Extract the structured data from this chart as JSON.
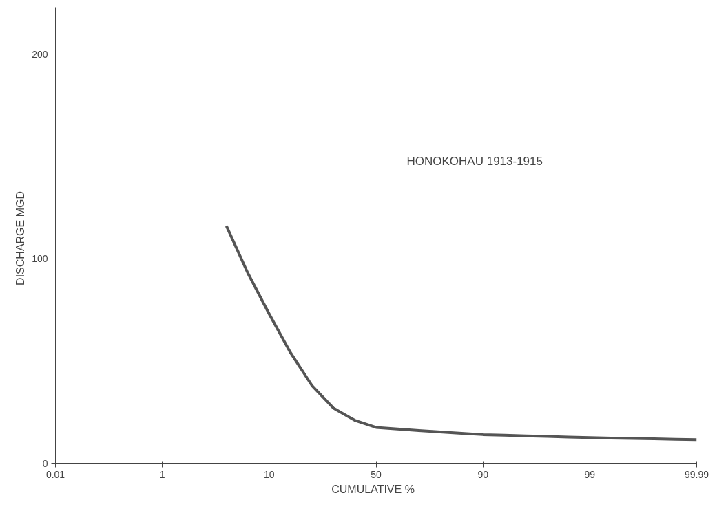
{
  "chart_data": {
    "type": "line",
    "xlabel": "CUMULATIVE   %",
    "ylabel": "DISCHARGE   MGD",
    "annotations": [
      "HONOKOHAU    1913-1915"
    ],
    "categories": [
      "0.01",
      null,
      null,
      null,
      null,
      "1",
      null,
      null,
      null,
      null,
      "10",
      null,
      null,
      null,
      null,
      "50",
      null,
      null,
      null,
      null,
      "90",
      null,
      null,
      null,
      null,
      "99",
      null,
      null,
      null,
      null,
      "99.99"
    ],
    "series": [
      {
        "color": "#555555",
        "values": [
          null,
          null,
          null,
          null,
          null,
          null,
          null,
          null,
          116,
          93,
          73,
          54,
          38,
          27,
          21,
          17.5,
          16.7,
          16,
          15.3,
          14.6,
          14,
          13.7,
          13.4,
          13.1,
          12.8,
          12.5,
          12.3,
          12.1,
          11.9,
          11.7,
          11.5
        ]
      }
    ],
    "ylim": [
      0,
      223
    ],
    "yticks": [
      0,
      100,
      200
    ],
    "grid": false,
    "marker": "none",
    "line_style": "solid"
  }
}
